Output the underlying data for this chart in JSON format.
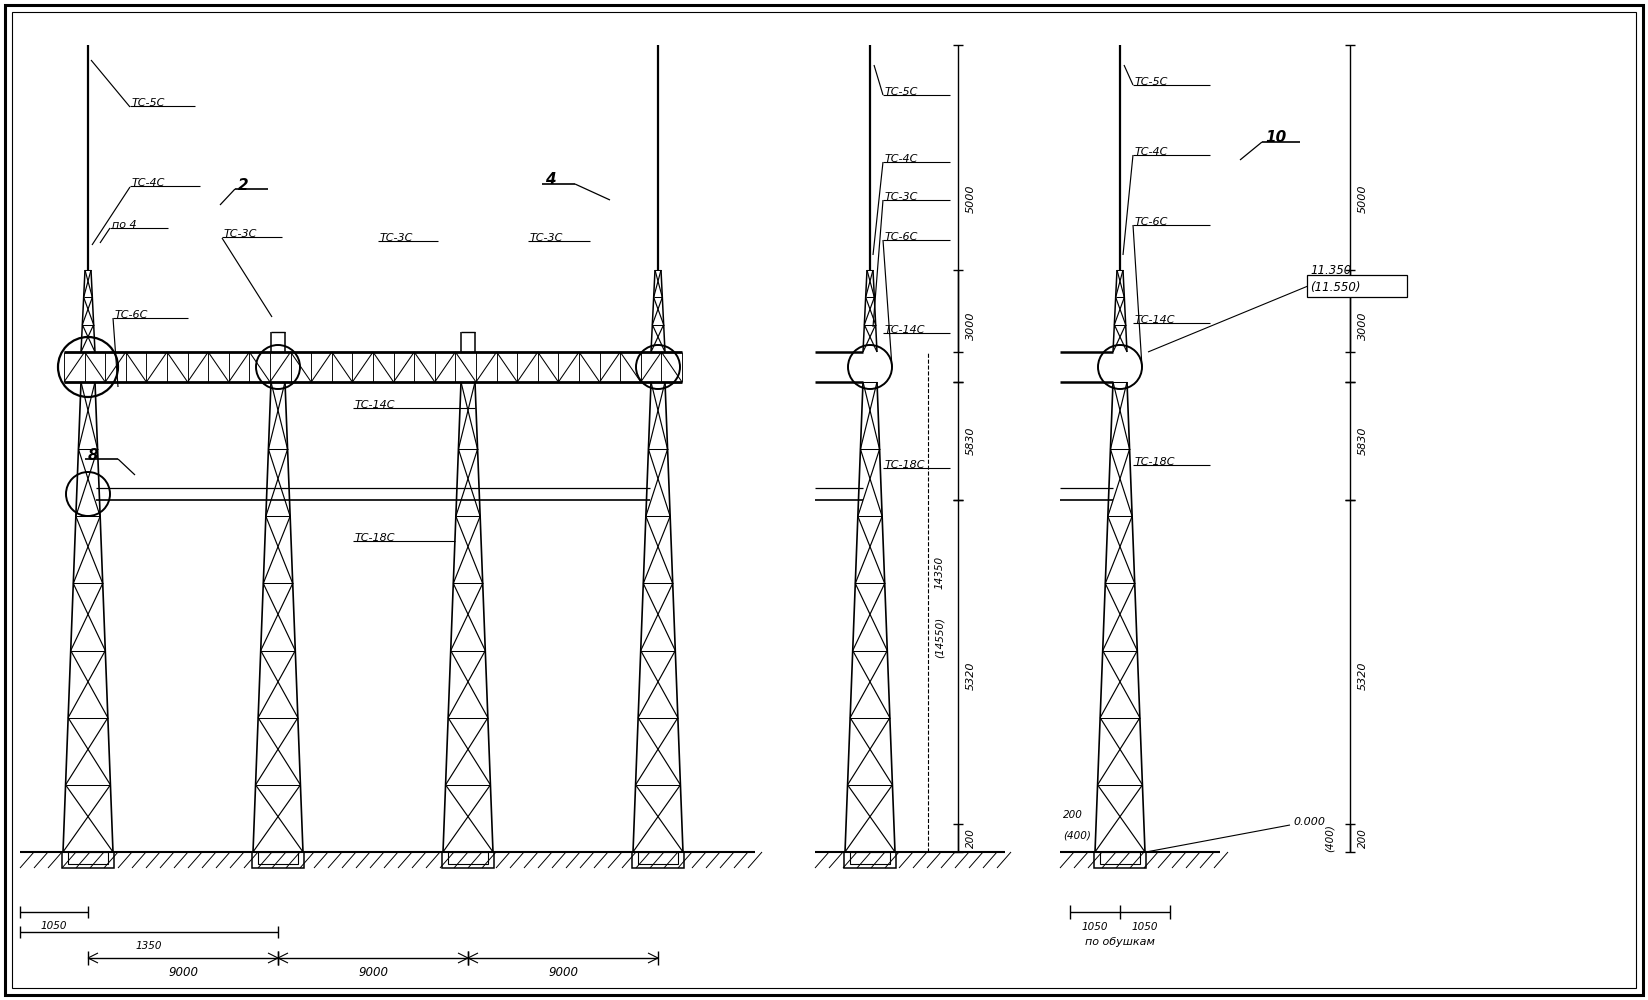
{
  "bg_color": "#ffffff",
  "fig_width": 16.48,
  "fig_height": 10.0,
  "labels": {
    "TC_5C": "TC-5C",
    "TC_4C": "TC-4C",
    "TC_3C": "TC-3C",
    "TC_6C": "TC-6C",
    "TC_14C": "TC-14C",
    "TC_18C": "TC-18C",
    "label_2": "2",
    "label_4": "4",
    "label_8": "8",
    "label_po4": "по 4",
    "label_10": "10",
    "dim_9000": "9000",
    "dim_1050": "1050",
    "dim_1350": "1350",
    "dim_5000": "5000",
    "dim_3000": "3000",
    "dim_5830": "5830",
    "dim_5320": "5320",
    "dim_200": "200",
    "dim_400": "(400)",
    "dim_11350": "11.350",
    "dim_11550": "(11.550)",
    "dim_0000": "0.000",
    "dim_1050r": "1050",
    "dim_1050r2": "1050",
    "label_po_obushkam": "по обушкам",
    "dim_14350": "14350",
    "dim_14550": "(14550)"
  }
}
